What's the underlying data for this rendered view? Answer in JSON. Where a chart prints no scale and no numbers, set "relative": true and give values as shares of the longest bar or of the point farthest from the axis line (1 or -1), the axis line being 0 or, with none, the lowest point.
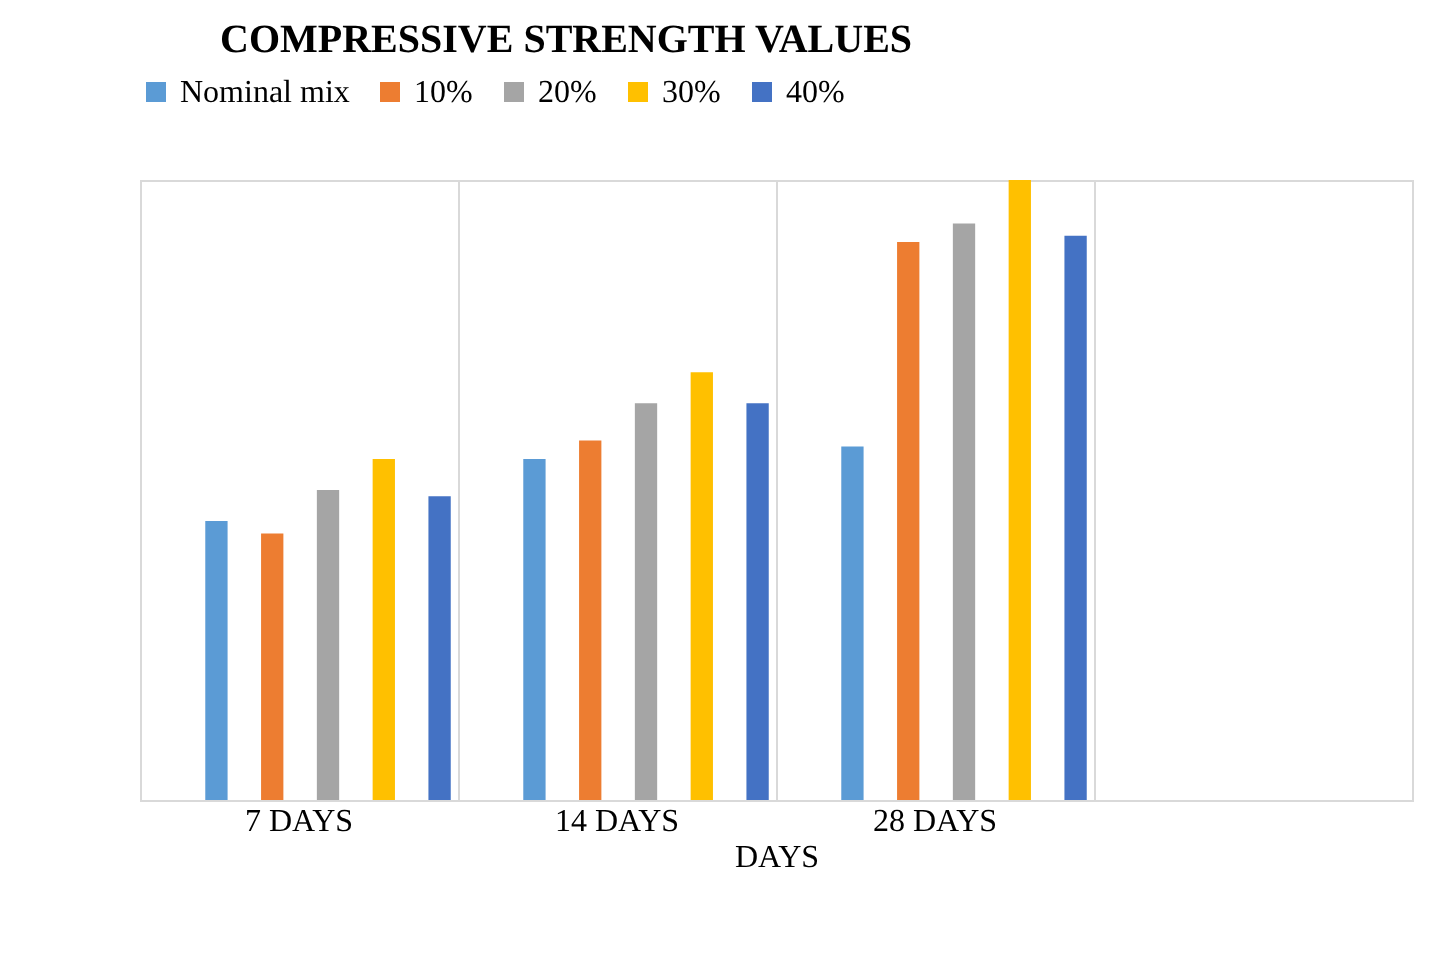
{
  "chart_data": {
    "type": "bar",
    "title": "COMPRESSIVE STRENGTH VALUES",
    "xlabel": "DAYS",
    "relative": true,
    "grid": "x",
    "legend": "top",
    "categories": [
      "7 DAYS",
      "14 DAYS",
      "28 DAYS",
      null
    ],
    "series": [
      {
        "name": "Nominal mix",
        "color": "#5b9bd5",
        "values": [
          0.45,
          0.55,
          0.57,
          null
        ]
      },
      {
        "name": "10%",
        "color": "#ed7d31",
        "values": [
          0.43,
          0.58,
          0.9,
          null
        ]
      },
      {
        "name": "20%",
        "color": "#a5a5a5",
        "values": [
          0.5,
          0.64,
          0.93,
          null
        ]
      },
      {
        "name": "30%",
        "color": "#ffc000",
        "values": [
          0.55,
          0.69,
          1,
          null
        ]
      },
      {
        "name": "40%",
        "color": "#4472c4",
        "values": [
          0.49,
          0.64,
          0.91,
          null
        ]
      }
    ]
  }
}
